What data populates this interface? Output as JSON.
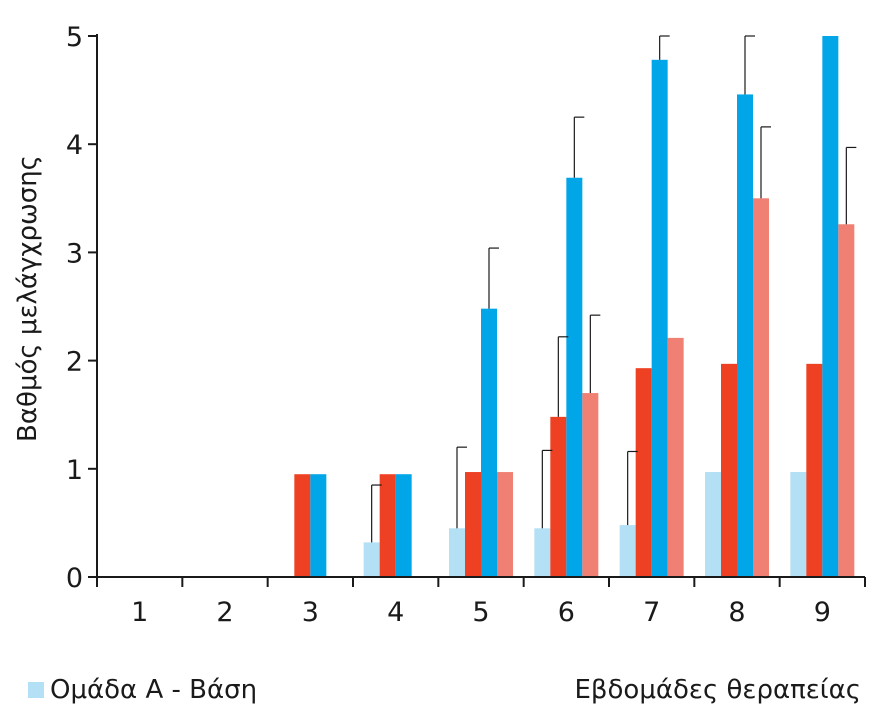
{
  "chart_data": {
    "type": "bar",
    "categories": [
      "1",
      "2",
      "3",
      "4",
      "5",
      "6",
      "7",
      "8",
      "9"
    ],
    "ylabel": "Βαθμός μελάγχρωσης",
    "xlabel": "Εβδομάδες θεραπείας",
    "ylim": [
      0,
      5
    ],
    "yticks": [
      "0",
      "1",
      "2",
      "3",
      "4",
      "5"
    ],
    "grid": false,
    "legend_position": "bottom-left",
    "series": [
      {
        "name": "Ομάδα Α - Βάση",
        "color": "#b3e0f5",
        "values": [
          0,
          0,
          0,
          0.32,
          0.45,
          0.45,
          0.48,
          0.97,
          0.97
        ],
        "errors": [
          0,
          0,
          0,
          0.53,
          0.75,
          0.72,
          0.68,
          0,
          0
        ]
      },
      {
        "color": "#ee4022",
        "values": [
          0,
          0,
          0.95,
          0.95,
          0.97,
          1.48,
          1.93,
          1.97,
          1.97
        ],
        "errors": [
          0,
          0,
          0,
          0,
          0,
          0.74,
          0,
          0,
          0
        ]
      },
      {
        "color": "#00a6e8",
        "values": [
          0,
          0,
          0.95,
          0.95,
          2.48,
          3.69,
          4.78,
          4.46,
          5.0
        ],
        "errors": [
          0,
          0,
          0,
          0,
          0.56,
          0.56,
          0.22,
          0.54,
          0
        ]
      },
      {
        "color": "#f08073",
        "values": [
          0,
          0,
          0,
          0,
          0.97,
          1.7,
          2.21,
          3.5,
          3.26
        ],
        "errors": [
          0,
          0,
          0,
          0,
          0,
          0.72,
          0,
          0.66,
          0.71
        ]
      }
    ]
  }
}
